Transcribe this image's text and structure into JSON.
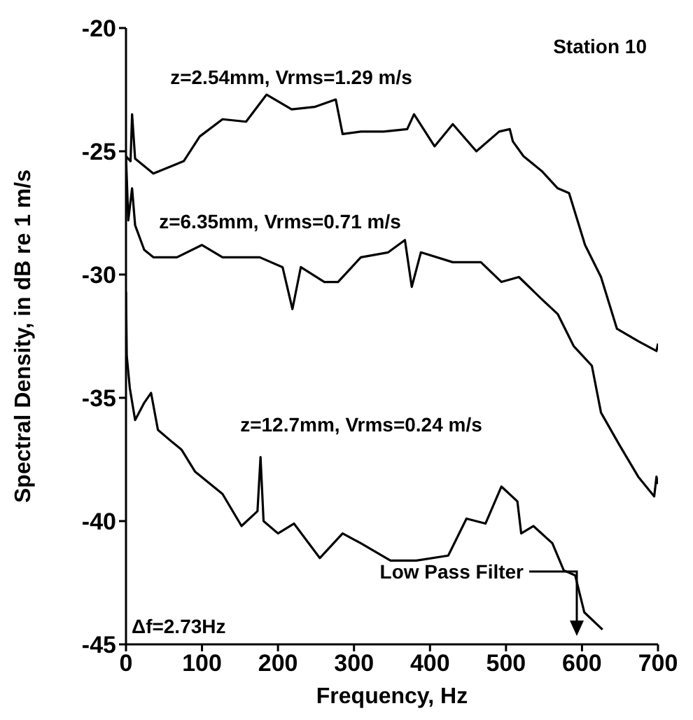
{
  "chart_data": {
    "type": "line",
    "xlabel": "Frequency, Hz",
    "ylabel": "Spectral Density, in dB re 1 m/s",
    "xlim": [
      0,
      700
    ],
    "xticks": [
      0,
      100,
      200,
      300,
      400,
      500,
      600,
      700
    ],
    "ylim": [
      -45,
      -20
    ],
    "yticks": [
      -45,
      -40,
      -35,
      -30,
      -25,
      -20
    ],
    "marker": "none",
    "line_style": "solid",
    "annotations": [
      "Station 10",
      "Δf=2.73Hz",
      "Low Pass Filter"
    ],
    "series": [
      {
        "name": "z=2.54mm, Vrms=1.29 m/s",
        "color": "#000000",
        "x": [
          0,
          6,
          8,
          12,
          36,
          76,
          97,
          127,
          158,
          185,
          218,
          248,
          276,
          285,
          309,
          339,
          370,
          379,
          406,
          430,
          461,
          491,
          505,
          509,
          523,
          547,
          568,
          583,
          604,
          625,
          646,
          674,
          698,
          700
        ],
        "values": [
          -25.2,
          -25.4,
          -23.5,
          -25.3,
          -25.9,
          -25.4,
          -24.4,
          -23.7,
          -23.8,
          -22.7,
          -23.3,
          -23.2,
          -22.9,
          -24.3,
          -24.2,
          -24.2,
          -24.1,
          -23.5,
          -24.8,
          -23.9,
          -25.0,
          -24.2,
          -24.1,
          -24.6,
          -25.2,
          -25.8,
          -26.5,
          -26.7,
          -28.8,
          -30.1,
          -32.2,
          -32.7,
          -33.1,
          -32.8
        ]
      },
      {
        "name": "z=6.35mm, Vrms=0.71 m/s",
        "color": "#000000",
        "x": [
          0,
          3,
          8,
          12,
          24,
          36,
          67,
          100,
          127,
          176,
          206,
          219,
          230,
          261,
          279,
          309,
          345,
          367,
          376,
          388,
          430,
          467,
          494,
          517,
          547,
          568,
          589,
          613,
          625,
          649,
          674,
          695,
          698,
          700
        ],
        "values": [
          -25.2,
          -27.8,
          -26.5,
          -28.0,
          -29.0,
          -29.3,
          -29.3,
          -28.8,
          -29.3,
          -29.3,
          -29.7,
          -31.4,
          -29.7,
          -30.3,
          -30.3,
          -29.3,
          -29.1,
          -28.6,
          -30.5,
          -29.1,
          -29.5,
          -29.5,
          -30.3,
          -30.1,
          -31.0,
          -31.6,
          -32.9,
          -33.7,
          -35.6,
          -36.9,
          -38.2,
          -39.0,
          -38.2,
          -38.5
        ]
      },
      {
        "name": "z=12.7mm, Vrms=0.24 m/s",
        "color": "#000000",
        "x": [
          0,
          1,
          5,
          12,
          24,
          33,
          42,
          61,
          73,
          91,
          127,
          152,
          173,
          177,
          181,
          200,
          221,
          255,
          285,
          309,
          348,
          382,
          424,
          448,
          473,
          494,
          515,
          520,
          536,
          561,
          576,
          591,
          603,
          627
        ],
        "values": [
          -30.7,
          -33.3,
          -34.6,
          -35.9,
          -35.2,
          -34.8,
          -36.3,
          -36.8,
          -37.1,
          -38.0,
          -38.9,
          -40.2,
          -39.6,
          -37.4,
          -40.0,
          -40.5,
          -40.1,
          -41.5,
          -40.5,
          -40.9,
          -41.6,
          -41.6,
          -41.4,
          -39.9,
          -40.1,
          -38.6,
          -39.2,
          -40.5,
          -40.2,
          -40.9,
          -42.0,
          -42.2,
          -43.7,
          -44.4
        ]
      }
    ]
  }
}
